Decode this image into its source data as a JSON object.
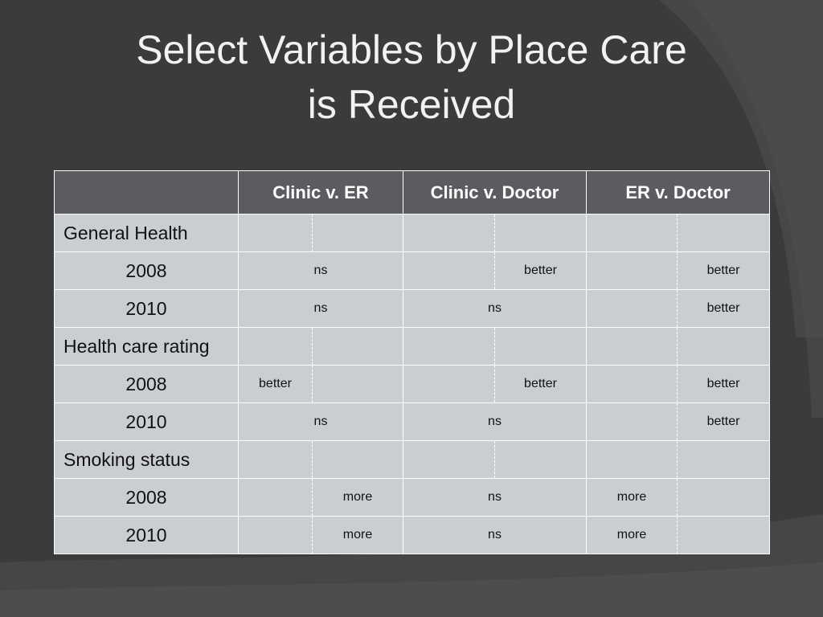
{
  "slide": {
    "title_line1": "Select Variables by Place Care",
    "title_line2": "is Received"
  },
  "table": {
    "headers": [
      "",
      "Clinic v. ER",
      "Clinic v. Doctor",
      "ER v. Doctor"
    ],
    "sections": [
      {
        "label": "General Health",
        "rows": [
          {
            "year": "2008",
            "clinic_er": "ns",
            "clinic_doctor": "better",
            "er_doctor": "better"
          },
          {
            "year": "2010",
            "clinic_er": "ns",
            "clinic_doctor": "ns",
            "er_doctor": "better"
          }
        ]
      },
      {
        "label": "Health care rating",
        "rows": [
          {
            "year": "2008",
            "clinic_er": "better",
            "clinic_doctor": "better",
            "er_doctor": "better"
          },
          {
            "year": "2010",
            "clinic_er": "ns",
            "clinic_doctor": "ns",
            "er_doctor": "better"
          }
        ]
      },
      {
        "label": "Smoking status",
        "rows": [
          {
            "year": "2008",
            "clinic_er": "more",
            "clinic_doctor": "ns",
            "er_doctor": "more"
          },
          {
            "year": "2010",
            "clinic_er": "more",
            "clinic_doctor": "ns",
            "er_doctor": "more"
          }
        ]
      }
    ]
  }
}
